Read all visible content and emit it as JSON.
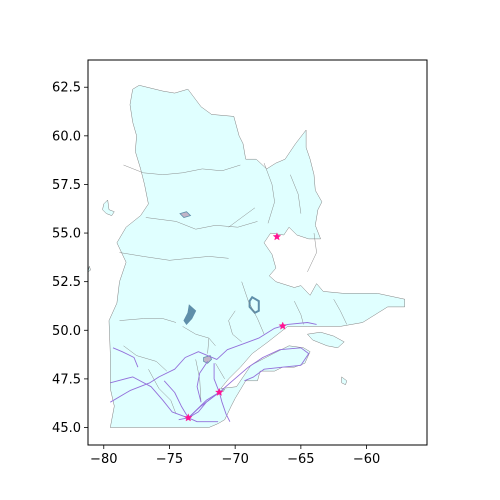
{
  "chart_data": {
    "type": "map",
    "title": "",
    "xlabel": "",
    "ylabel": "",
    "xlim": [
      -81.2,
      -55.4
    ],
    "ylim": [
      44.1,
      63.9
    ],
    "x_ticks": [
      -80,
      -75,
      -70,
      -65,
      -60
    ],
    "x_tick_labels": [
      "−80",
      "−75",
      "−70",
      "−65",
      "−60"
    ],
    "y_ticks": [
      45.0,
      47.5,
      50.0,
      52.5,
      55.0,
      57.5,
      60.0,
      62.5
    ],
    "y_tick_labels": [
      "45.0",
      "47.5",
      "50.0",
      "52.5",
      "55.0",
      "57.5",
      "60.0",
      "62.5"
    ],
    "grid": false,
    "colors": {
      "land_fill": "#e0ffff",
      "land_edge": "#808080",
      "water_fill": "#5f8faa",
      "road": "#9370db",
      "city_marker": "#ff1493"
    },
    "cities": [
      {
        "lon": -73.57,
        "lat": 45.5
      },
      {
        "lon": -71.21,
        "lat": 46.81
      },
      {
        "lon": -66.38,
        "lat": 50.22
      },
      {
        "lon": -66.82,
        "lat": 54.81
      }
    ]
  }
}
